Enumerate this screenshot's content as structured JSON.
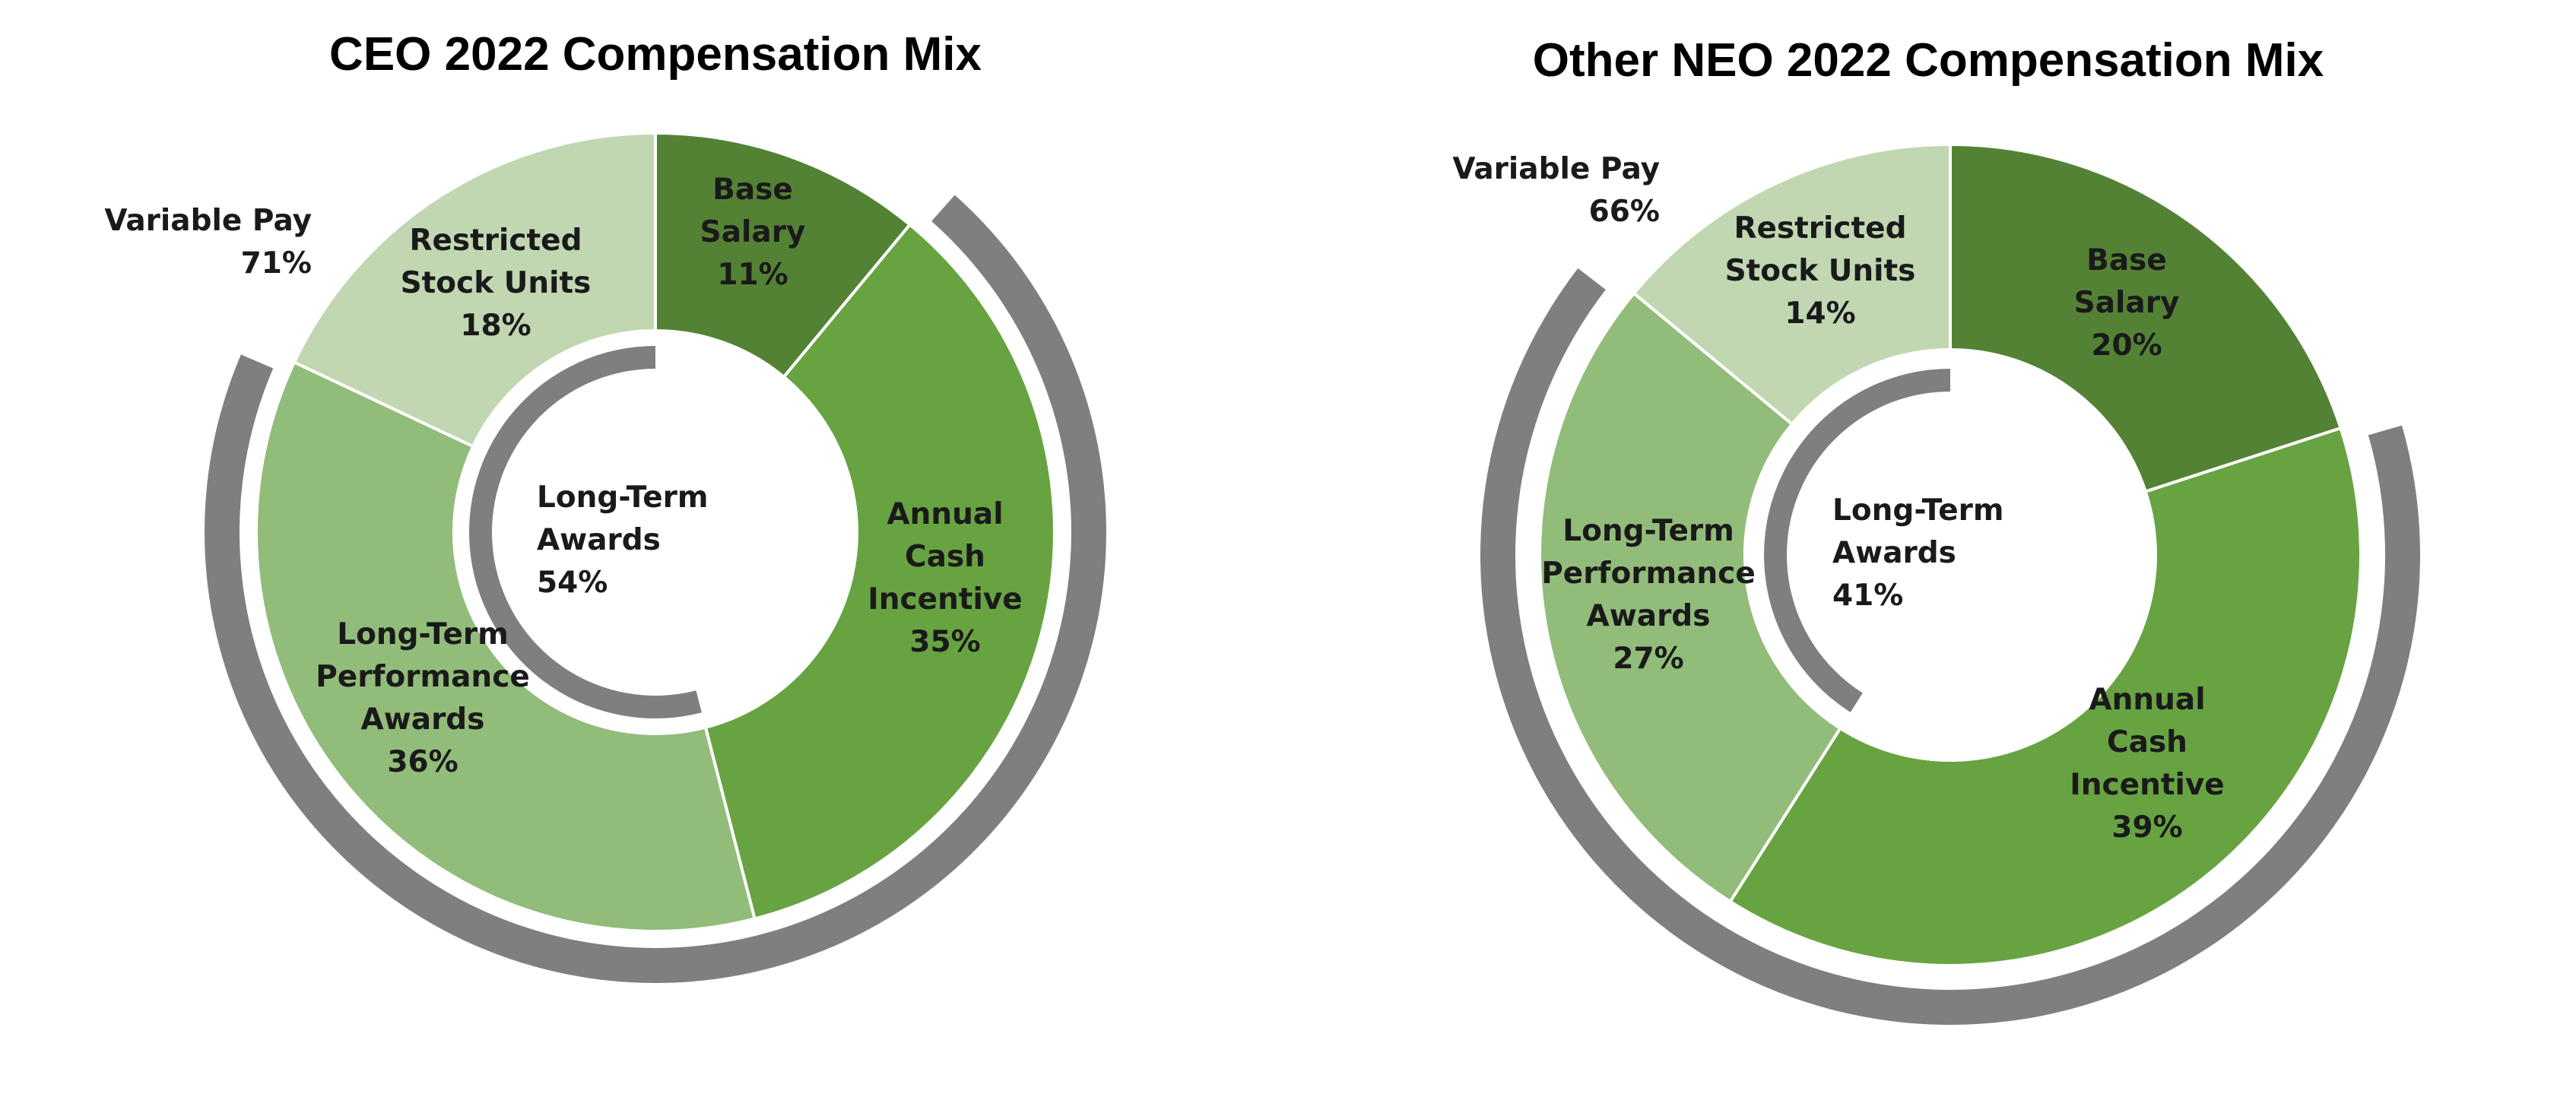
{
  "chart_data": [
    {
      "type": "pie",
      "title": "CEO 2022 Compensation Mix",
      "slices": [
        {
          "label": [
            "Base",
            "Salary"
          ],
          "value": 11,
          "value_label": "11%",
          "color": "#548235"
        },
        {
          "label": [
            "Annual",
            "Cash",
            "Incentive"
          ],
          "value": 35,
          "value_label": "35%",
          "color": "#68A342"
        },
        {
          "label": [
            "Long-Term",
            "Performance",
            "Awards"
          ],
          "value": 36,
          "value_label": "36%",
          "color": "#92BC7A"
        },
        {
          "label": [
            "Restricted",
            "Stock Units"
          ],
          "value": 18,
          "value_label": "18%",
          "color": "#C0D7B2"
        }
      ],
      "outer_arc": {
        "label": "Variable Pay",
        "value": 71,
        "value_label": "71%",
        "color": "#7F7F7F"
      },
      "inner_arc": {
        "label": [
          "Long-Term",
          "Awards"
        ],
        "value": 54,
        "value_label": "54%",
        "color": "#7F7F7F"
      }
    },
    {
      "type": "pie",
      "title": "Other NEO 2022 Compensation Mix",
      "slices": [
        {
          "label": [
            "Base",
            "Salary"
          ],
          "value": 20,
          "value_label": "20%",
          "color": "#548235"
        },
        {
          "label": [
            "Annual",
            "Cash",
            "Incentive"
          ],
          "value": 39,
          "value_label": "39%",
          "color": "#68A342"
        },
        {
          "label": [
            "Long-Term",
            "Performance",
            "Awards"
          ],
          "value": 27,
          "value_label": "27%",
          "color": "#92BC7A"
        },
        {
          "label": [
            "Restricted",
            "Stock Units"
          ],
          "value": 14,
          "value_label": "14%",
          "color": "#C0D7B2"
        }
      ],
      "outer_arc": {
        "label": "Variable Pay",
        "value": 66,
        "value_label": "66%",
        "color": "#7F7F7F"
      },
      "inner_arc": {
        "label": [
          "Long-Term",
          "Awards"
        ],
        "value": 41,
        "value_label": "41%",
        "color": "#7F7F7F"
      }
    }
  ]
}
